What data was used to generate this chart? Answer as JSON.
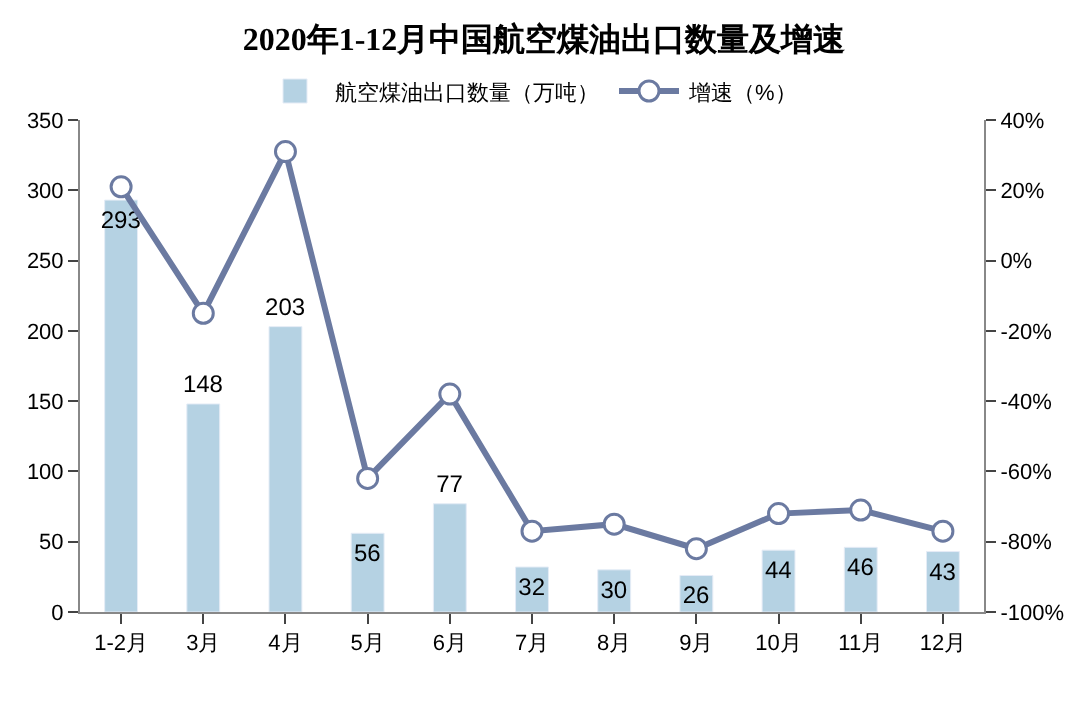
{
  "chart_data": {
    "type": "bar",
    "title": "2020年1-12月中国航空煤油出口数量及增速",
    "categories": [
      "1-2月",
      "3月",
      "4月",
      "5月",
      "6月",
      "7月",
      "8月",
      "9月",
      "10月",
      "11月",
      "12月"
    ],
    "series": [
      {
        "name": "航空煤油出口数量（万吨）",
        "color": "#b5d2e3",
        "values": [
          293,
          148,
          203,
          56,
          77,
          32,
          30,
          26,
          44,
          46,
          43
        ],
        "value_labels": [
          "293",
          "148",
          "203",
          "56",
          "77",
          "32",
          "30",
          "26",
          "44",
          "46",
          "43"
        ]
      },
      {
        "name": "增速（%）",
        "type": "line",
        "axis": "y2",
        "color": "#6b7aa1",
        "marker": "circle",
        "values": [
          21,
          -15,
          31,
          -62,
          -38,
          -77,
          -75,
          -82,
          -72,
          -71,
          -77
        ]
      }
    ],
    "ylim": [
      0,
      350
    ],
    "yticks": [
      0,
      50,
      100,
      150,
      200,
      250,
      300,
      350
    ],
    "y2lim": [
      -100,
      40
    ],
    "y2ticks": [
      {
        "value": -100,
        "label": "-100%"
      },
      {
        "value": -80,
        "label": "-80%"
      },
      {
        "value": -60,
        "label": "-60%"
      },
      {
        "value": -40,
        "label": "-40%"
      },
      {
        "value": -20,
        "label": "-20%"
      },
      {
        "value": 0,
        "label": "0%"
      },
      {
        "value": 20,
        "label": "20%"
      },
      {
        "value": 40,
        "label": "40%"
      }
    ],
    "legend": "top"
  }
}
